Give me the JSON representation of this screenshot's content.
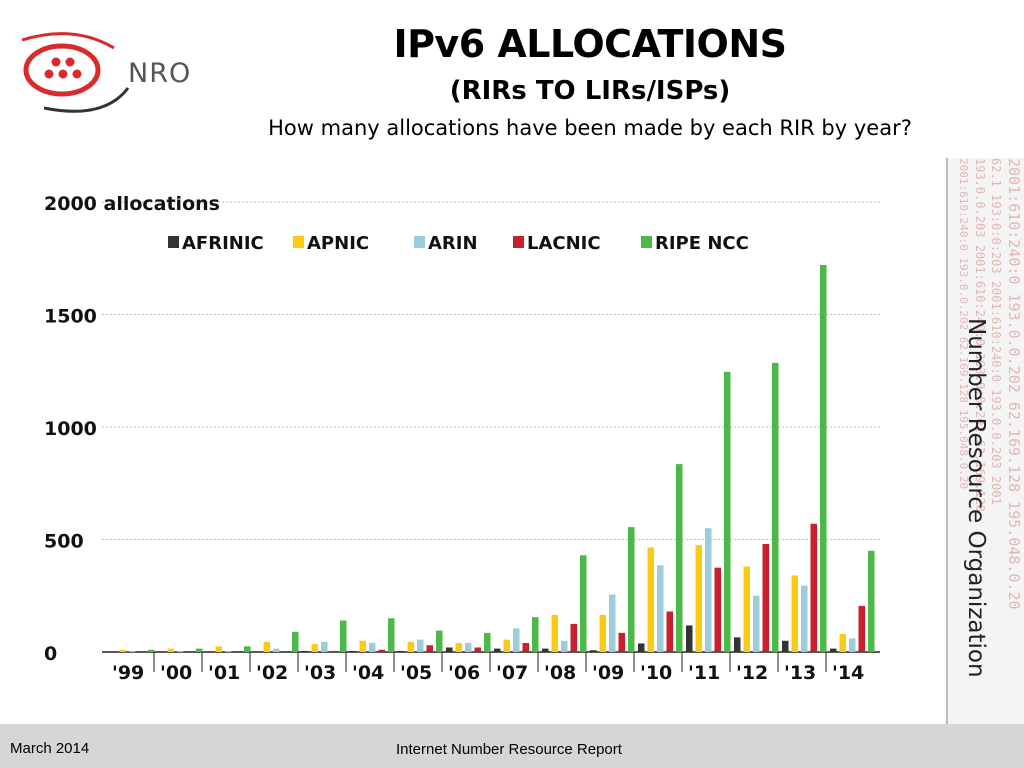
{
  "header": {
    "logo_text": "NRO",
    "title": "IPv6 ALLOCATIONS",
    "subtitle": "(RIRs TO LIRs/ISPs)",
    "question": "How many allocations have been made by each RIR by year?"
  },
  "side": {
    "title": "Number Resource Organization",
    "deco_lines": [
      "2001:610:240:0  193.0.0.202  62.169.128  195.048.0.20",
      "62.1 193:0:0:203  2001:610:240:0  193.0.0.203  2001",
      "193.0.0.203  2001:610:240:0  193.0.0.202  62.169.128",
      "2001:610:240:0  193.0.0.202  62.169.128  195.048.0.20"
    ]
  },
  "footer": {
    "date": "March 2014",
    "report": "Internet Number Resource Report"
  },
  "colors": {
    "AFRINIC": "#333333",
    "APNIC": "#f9cc10",
    "ARIN": "#9ccbdc",
    "LACNIC": "#c8202f",
    "RIPE NCC": "#4cb848",
    "grid": "#bbbbbb",
    "logo_red": "#d92b2b"
  },
  "chart_data": {
    "type": "bar",
    "title": "",
    "xlabel": "",
    "ylabel": "",
    "ylim": [
      0,
      2000
    ],
    "y_ticks": [
      0,
      500,
      1000,
      1500,
      2000
    ],
    "y_tick_labels": [
      "0",
      "500",
      "1000",
      "1500",
      "2000 allocations"
    ],
    "grid": true,
    "legend_position": "top",
    "categories": [
      "'99",
      "'00",
      "'01",
      "'02",
      "'03",
      "'04",
      "'05",
      "'06",
      "'07",
      "'08",
      "'09",
      "'10",
      "'11",
      "'12",
      "'13",
      "'14"
    ],
    "series": [
      {
        "name": "AFRINIC",
        "values": [
          0,
          0,
          0,
          0,
          2,
          2,
          2,
          20,
          15,
          15,
          8,
          38,
          118,
          65,
          50,
          15
        ]
      },
      {
        "name": "APNIC",
        "values": [
          10,
          15,
          25,
          45,
          35,
          50,
          45,
          40,
          55,
          165,
          165,
          465,
          475,
          380,
          340,
          80
        ]
      },
      {
        "name": "ARIN",
        "values": [
          5,
          5,
          5,
          15,
          45,
          40,
          55,
          40,
          105,
          50,
          255,
          385,
          550,
          250,
          295,
          60
        ]
      },
      {
        "name": "LACNIC",
        "values": [
          0,
          0,
          0,
          0,
          5,
          10,
          30,
          20,
          40,
          125,
          85,
          180,
          375,
          480,
          570,
          205
        ]
      },
      {
        "name": "RIPE NCC",
        "values": [
          10,
          15,
          25,
          90,
          140,
          150,
          95,
          85,
          155,
          430,
          555,
          835,
          1245,
          1285,
          1720,
          450
        ]
      }
    ]
  }
}
